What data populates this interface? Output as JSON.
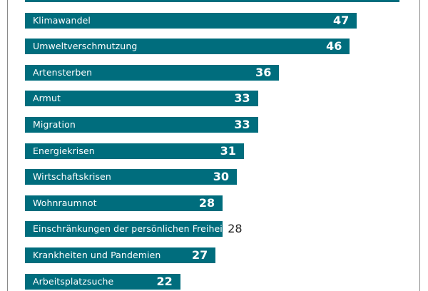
{
  "chart_data": {
    "type": "bar",
    "orientation": "horizontal",
    "color": "#006d7d",
    "categories": [
      "",
      "Klimawandel",
      "Umweltverschmutzung",
      "Artensterben",
      "Armut",
      "Migration",
      "Energiekrisen",
      "Wirtschaftskrisen",
      "Wohnraumnot",
      "Einschränkungen der persönlichen Freiheit",
      "Krankheiten und Pandemien",
      "Arbeitsplatzsuche"
    ],
    "values": [
      53,
      47,
      46,
      36,
      33,
      33,
      31,
      30,
      28,
      28,
      27,
      22
    ],
    "value_labels": [
      "",
      "47",
      "46",
      "36",
      "33",
      "33",
      "31",
      "30",
      "28",
      "28",
      "27",
      "22"
    ],
    "label_outside": [
      false,
      false,
      false,
      false,
      false,
      false,
      false,
      false,
      false,
      true,
      false,
      false
    ]
  }
}
